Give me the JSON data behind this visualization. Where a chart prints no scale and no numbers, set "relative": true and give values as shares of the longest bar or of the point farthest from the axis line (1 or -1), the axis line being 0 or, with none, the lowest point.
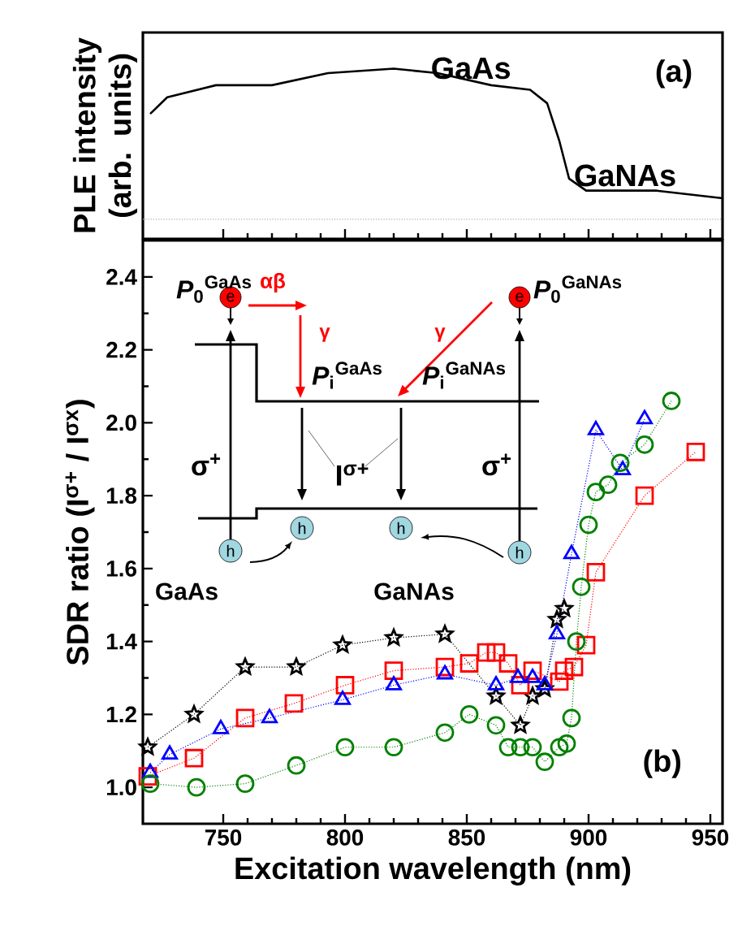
{
  "chart_data": [
    {
      "type": "line",
      "relative": true,
      "x": [
        720,
        727,
        747,
        770,
        793,
        820,
        838,
        860,
        876,
        883,
        888,
        892,
        899,
        928,
        955
      ],
      "values": [
        0.7,
        0.81,
        0.89,
        0.89,
        0.97,
        1.0,
        0.97,
        0.89,
        0.86,
        0.77,
        0.52,
        0.27,
        0.19,
        0.19,
        0.14
      ],
      "color": "#000000",
      "xlim": [
        717,
        955
      ],
      "xticks": [
        750,
        800,
        850,
        900,
        950
      ],
      "tick_labels": false,
      "ylabel": "PLE intensity (arb. units)",
      "ref_lines": [
        {
          "axis": "y",
          "value": 0,
          "color": "#aaaaaa",
          "line_style": "dotted"
        }
      ],
      "annotations": [
        "GaAs",
        "GaNAs",
        "(a)"
      ]
    },
    {
      "type": "line",
      "line_style": "dotted",
      "xlim": [
        717,
        955
      ],
      "ylim": [
        0.9,
        2.5
      ],
      "xticks": [
        750,
        800,
        850,
        900,
        950
      ],
      "yticks": [
        {
          "value": 1.0,
          "label": "1.0"
        },
        {
          "value": 1.2,
          "label": "1.2"
        },
        {
          "value": 1.4,
          "label": "1.4"
        },
        {
          "value": 1.6,
          "label": "1.6"
        },
        {
          "value": 1.8,
          "label": "1.8"
        },
        {
          "value": 2.0,
          "label": "2.0"
        },
        {
          "value": 2.2,
          "label": "2.2"
        },
        {
          "value": 2.4,
          "label": "2.4"
        }
      ],
      "xlabel": "Excitation wavelength (nm)",
      "ylabel": "SDR ratio (I$^{σ+}$ / I$^{σx}$)",
      "series": [
        {
          "color": "#000000",
          "marker": "star",
          "x": [
            719,
            738,
            759,
            780,
            799,
            820,
            841,
            862,
            872,
            877,
            882,
            887,
            890
          ],
          "values": [
            1.11,
            1.2,
            1.33,
            1.33,
            1.39,
            1.41,
            1.42,
            1.25,
            1.17,
            1.25,
            1.27,
            1.46,
            1.49
          ]
        },
        {
          "color": "#ff0000",
          "marker": "square",
          "x": [
            719,
            738,
            759,
            779,
            800,
            820,
            841,
            851,
            858,
            862,
            867,
            872,
            877,
            888,
            890,
            894,
            899,
            903,
            923,
            944
          ],
          "values": [
            1.03,
            1.08,
            1.19,
            1.23,
            1.28,
            1.32,
            1.33,
            1.34,
            1.37,
            1.37,
            1.34,
            1.28,
            1.32,
            1.29,
            1.32,
            1.33,
            1.39,
            1.59,
            1.8,
            1.92
          ]
        },
        {
          "color": "#0000ff",
          "marker": "triangle",
          "x": [
            720,
            728,
            749,
            769,
            799,
            820,
            841,
            862,
            871,
            877,
            882,
            887,
            893,
            903,
            914,
            923
          ],
          "values": [
            1.04,
            1.09,
            1.16,
            1.19,
            1.24,
            1.28,
            1.31,
            1.28,
            1.3,
            1.3,
            1.28,
            1.42,
            1.64,
            1.98,
            1.87,
            2.01
          ]
        },
        {
          "color": "#008000",
          "marker": "circle",
          "x": [
            720,
            739,
            759,
            780,
            800,
            820,
            841,
            851,
            862,
            867,
            872,
            877,
            882,
            888,
            891,
            893,
            895,
            897,
            900,
            903,
            908,
            913,
            923,
            934
          ],
          "values": [
            1.01,
            1.0,
            1.01,
            1.06,
            1.11,
            1.11,
            1.15,
            1.2,
            1.17,
            1.11,
            1.11,
            1.11,
            1.07,
            1.11,
            1.12,
            1.19,
            1.4,
            1.55,
            1.72,
            1.81,
            1.83,
            1.89,
            1.94,
            2.06
          ]
        }
      ],
      "annotations": [
        "(b)",
        "*P*$_{0}$$^{GaAs}$",
        "*P*$_{0}$$^{GaNAs}$",
        "αβ",
        "γ",
        "γ",
        "*P*$_{i}$$^{GaAs}$",
        "*P*$_{i}$$^{GaNAs}$",
        "σ$^{+}$",
        "σ$^{+}$",
        "I$^{σ+}$",
        "GaAs",
        "GaNAs",
        "e",
        "e",
        "h",
        "h",
        "h",
        "h"
      ]
    }
  ]
}
